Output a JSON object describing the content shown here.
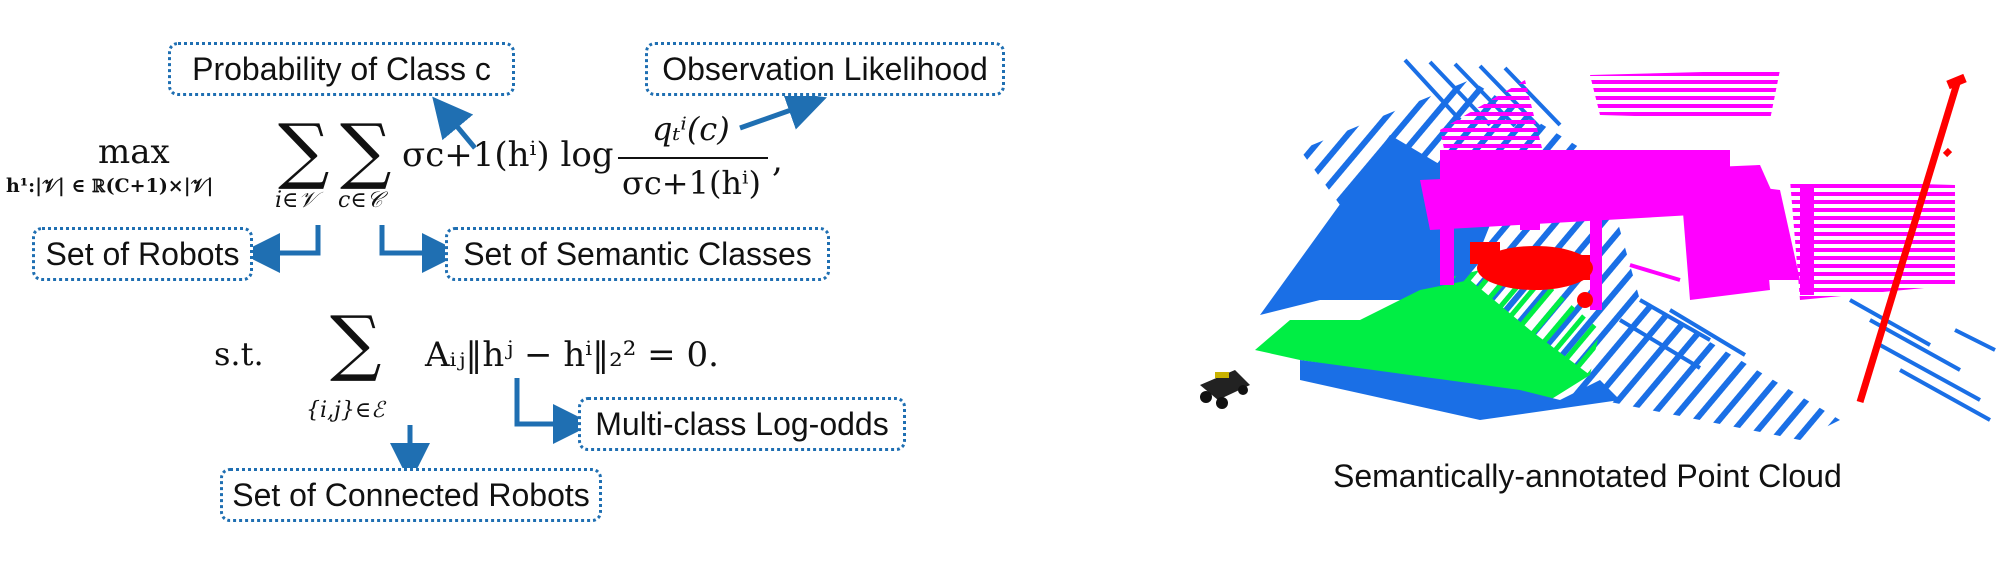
{
  "annotations": {
    "prob_class": "Probability of Class c",
    "obs_likelihood": "Observation Likelihood",
    "set_robots": "Set of Robots",
    "set_semantic": "Set of Semantic Classes",
    "multiclass": "Multi-class Log-odds",
    "set_connected": "Set of Connected Robots"
  },
  "equation": {
    "max": "max",
    "max_sub": "h¹:|𝒱| ∈ ℝ(C+1)×|𝒱|",
    "sum_i_sub": "i∈𝒱",
    "sum_c_sub": "c∈𝒞",
    "sigma_term": "σc+1(hⁱ) log",
    "numerator": "qₜⁱ(c)",
    "denominator": "σc+1(hⁱ)",
    "st": "s.t.",
    "sum_e_sub": "{i,j}∈ℰ",
    "constraint": "Aᵢⱼ‖hʲ − hⁱ‖₂² = 0."
  },
  "caption": "Semantically-annotated Point Cloud",
  "colors": {
    "accent": "#1f6fb2",
    "magenta": "#ff00ff",
    "blue": "#1a6fe6",
    "green": "#00ff44",
    "red": "#ff0000"
  }
}
